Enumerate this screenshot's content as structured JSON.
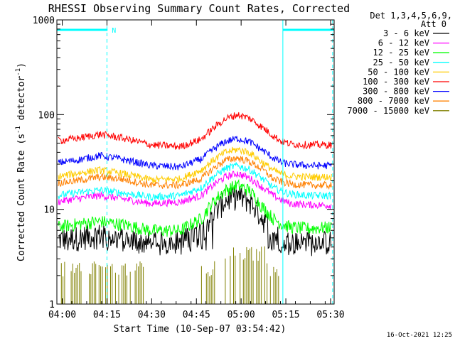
{
  "chart_data": {
    "type": "line",
    "title": "RHESSI Observing Summary Count Rates, Corrected",
    "xlabel": "Start Time (10-Sep-07 03:54:42)",
    "ylabel": "Corrected Count Rate (s",
    "ylabel_sup1": "-1",
    "ylabel_mid": " detector",
    "ylabel_sup2": "-1",
    "ylabel_end": ")",
    "yscale": "log",
    "ylim": [
      1,
      1000
    ],
    "xlim_minutes": [
      3.5,
      96.5
    ],
    "x_ticks": [
      {
        "m": 5.3,
        "label": "04:00"
      },
      {
        "m": 20.3,
        "label": "04:15"
      },
      {
        "m": 35.3,
        "label": "04:30"
      },
      {
        "m": 50.3,
        "label": "04:45"
      },
      {
        "m": 65.3,
        "label": "05:00"
      },
      {
        "m": 80.3,
        "label": "05:15"
      },
      {
        "m": 95.3,
        "label": "05:30"
      }
    ],
    "y_ticks": [
      {
        "v": 1,
        "label": "1"
      },
      {
        "v": 10,
        "label": "10"
      },
      {
        "v": 100,
        "label": "100"
      },
      {
        "v": 1000,
        "label": "1000"
      }
    ],
    "legend_header": [
      "Det 1,3,4,5,6,9,",
      "Att 0"
    ],
    "legend_position": "right",
    "series": [
      {
        "name": "3 - 6 keV",
        "color": "#000000",
        "x": [
          3.5,
          10,
          18,
          25,
          35,
          45,
          52,
          56,
          60,
          64,
          68,
          72,
          76,
          79,
          82,
          88,
          96.5
        ],
        "y": [
          4.8,
          5.1,
          5.5,
          5.0,
          4.4,
          4.6,
          6.0,
          9.0,
          12.5,
          14.0,
          12.5,
          8.5,
          5.6,
          4.8,
          4.5,
          4.5,
          4.6
        ]
      },
      {
        "name": "6 - 12 keV",
        "color": "#ff00ff",
        "x": [
          3.5,
          10,
          18,
          25,
          35,
          45,
          52,
          56,
          60,
          64,
          68,
          72,
          76,
          79,
          82,
          88,
          96.5
        ],
        "y": [
          12,
          13,
          14,
          13,
          11.5,
          12,
          14,
          18,
          22,
          24,
          21.5,
          17.5,
          14,
          12.5,
          11.5,
          11.2,
          11
        ]
      },
      {
        "name": "12 - 25 keV",
        "color": "#00ff00",
        "x": [
          3.5,
          10,
          18,
          25,
          35,
          45,
          52,
          56,
          60,
          64,
          68,
          72,
          76,
          79,
          82,
          88,
          96.5
        ],
        "y": [
          6.5,
          7.0,
          7.5,
          7.0,
          6.0,
          6.0,
          8,
          12,
          16,
          18,
          16,
          11,
          8,
          7,
          6.5,
          6.3,
          6.5
        ]
      },
      {
        "name": "25 - 50 keV",
        "color": "#00ffff",
        "x": [
          3.5,
          10,
          18,
          25,
          35,
          45,
          52,
          56,
          60,
          64,
          68,
          72,
          76,
          79,
          82,
          88,
          96.5
        ],
        "y": [
          14,
          15,
          16,
          15,
          13.5,
          14,
          17,
          22,
          27,
          29,
          26.5,
          21.5,
          17,
          15.5,
          14.5,
          14,
          14
        ]
      },
      {
        "name": "50 - 100 keV",
        "color": "#ffcc00",
        "x": [
          3.5,
          10,
          18,
          25,
          35,
          45,
          52,
          56,
          60,
          64,
          68,
          72,
          76,
          79,
          82,
          88,
          96.5
        ],
        "y": [
          22,
          24,
          26,
          24,
          20.5,
          21,
          26,
          33,
          40,
          43,
          40,
          32,
          26,
          23.5,
          22.5,
          22,
          22
        ]
      },
      {
        "name": "100 - 300 keV",
        "color": "#ff0000",
        "x": [
          3.5,
          10,
          18,
          25,
          35,
          45,
          52,
          56,
          60,
          64,
          68,
          72,
          76,
          79,
          82,
          88,
          96.5
        ],
        "y": [
          53,
          56,
          62,
          57,
          48,
          46,
          55,
          72,
          90,
          100,
          92,
          75,
          60,
          52,
          49,
          48,
          48
        ]
      },
      {
        "name": "300 - 800 keV",
        "color": "#0000ff",
        "x": [
          3.5,
          10,
          18,
          25,
          35,
          45,
          52,
          56,
          60,
          64,
          68,
          72,
          76,
          79,
          82,
          88,
          96.5
        ],
        "y": [
          31,
          33,
          37,
          34,
          29,
          28,
          34,
          43,
          52,
          56,
          52,
          43,
          35,
          31,
          30,
          29,
          29
        ]
      },
      {
        "name": "800 - 7000 keV",
        "color": "#ff8000",
        "x": [
          3.5,
          10,
          18,
          25,
          35,
          45,
          52,
          56,
          60,
          64,
          68,
          72,
          76,
          79,
          82,
          88,
          96.5
        ],
        "y": [
          19,
          20,
          22,
          21,
          18,
          18,
          21,
          27,
          33,
          35,
          32,
          27,
          21,
          19.5,
          18.5,
          18,
          18
        ]
      },
      {
        "name": "7000 - 15000 keV",
        "color": "#808000",
        "x": [],
        "y": []
      }
    ],
    "annotations": {
      "flag_bars": [
        {
          "m0": 3.5,
          "m1": 20.5
        },
        {
          "m0": 79.3,
          "m1": 96.5
        }
      ],
      "flag_label": "N",
      "dashed_lines": [
        20.3,
        96.0
      ],
      "solid_lines": [
        3.5,
        79.3
      ]
    }
  },
  "footer": {
    "timestamp": "16-Oct-2021 12:25"
  }
}
